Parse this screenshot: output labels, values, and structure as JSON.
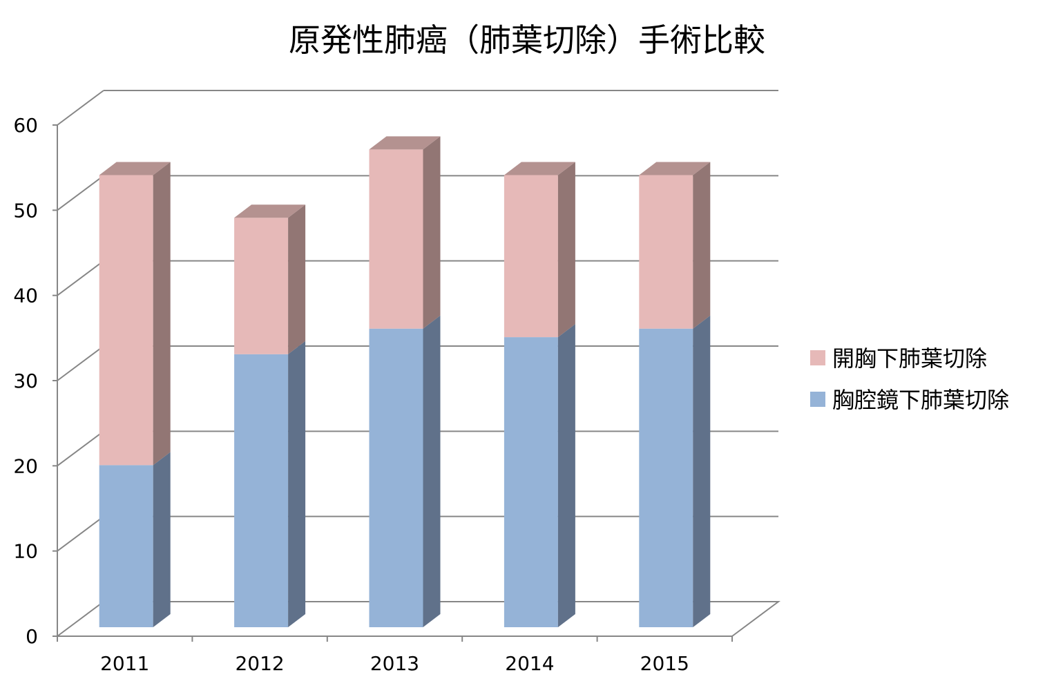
{
  "chart_data": {
    "type": "bar",
    "stacked": true,
    "three_d": true,
    "title": "原発性肺癌（肺葉切除）手術比較",
    "categories": [
      "2011",
      "2012",
      "2013",
      "2014",
      "2015"
    ],
    "series": [
      {
        "name": "胸腔鏡下肺葉切除",
        "values": [
          19,
          32,
          35,
          34,
          35
        ],
        "color": "#95B3D7",
        "side_color": "#60718A"
      },
      {
        "name": "開胸下肺葉切除",
        "values": [
          34,
          16,
          21,
          19,
          18
        ],
        "color": "#E6B9B8",
        "side_color": "#927674"
      }
    ],
    "y_ticks": [
      "0",
      "10",
      "20",
      "30",
      "40",
      "50",
      "60"
    ],
    "ylim": [
      0,
      60
    ],
    "grid": true,
    "legend_position": "right",
    "legend_order": [
      "開胸下肺葉切除",
      "胸腔鏡下肺葉切除"
    ]
  }
}
